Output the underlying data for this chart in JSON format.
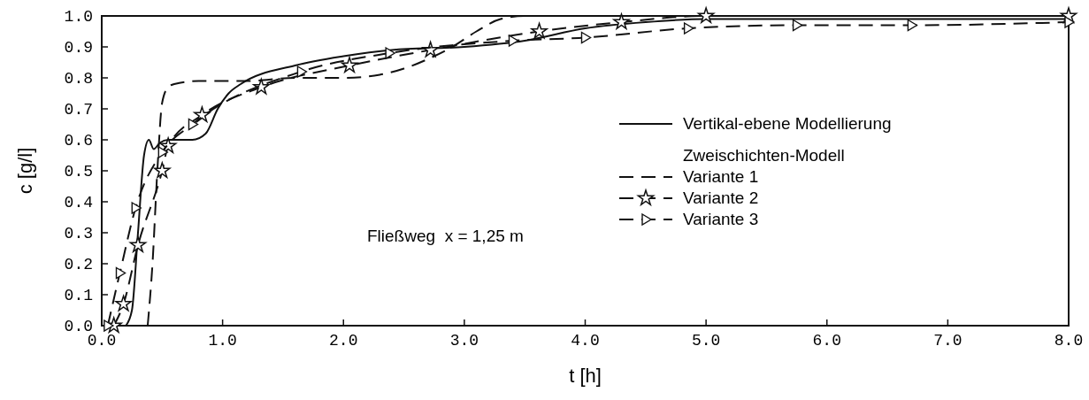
{
  "chart_data": {
    "type": "line",
    "xlabel": "t [h]",
    "ylabel": "c  [g/l]",
    "xlim": [
      0,
      8
    ],
    "ylim": [
      0,
      1
    ],
    "xticks": [
      {
        "value": 0,
        "label": "0.0"
      },
      {
        "value": 1,
        "label": "1.0"
      },
      {
        "value": 2,
        "label": "2.0"
      },
      {
        "value": 3,
        "label": "3.0"
      },
      {
        "value": 4,
        "label": "4.0"
      },
      {
        "value": 5,
        "label": "5.0"
      },
      {
        "value": 6,
        "label": "6.0"
      },
      {
        "value": 7,
        "label": "7.0"
      },
      {
        "value": 8,
        "label": "8.0"
      }
    ],
    "yticks": [
      {
        "value": 0,
        "label": "0.0"
      },
      0.1,
      0.2,
      0.3,
      0.4,
      0.5,
      0.6,
      0.7,
      0.8,
      0.9,
      {
        "value": 1,
        "label": "1.0"
      }
    ],
    "grid": false,
    "legend": "right",
    "legend_title": "Zweischichten-Modell",
    "annotations": [
      "Fließweg  x = 1,25 m"
    ],
    "series": [
      {
        "name": "Vertikal-ebene Modellierung",
        "color": "#111111",
        "line_style": "solid",
        "marker": "none",
        "x": [
          0.2,
          0.25,
          0.3,
          0.35,
          0.39,
          0.43,
          0.48,
          0.55,
          0.75,
          0.86,
          0.96,
          1.05,
          1.15,
          1.6,
          2.0,
          2.4,
          3.0,
          3.5,
          4.0,
          4.5,
          5.0,
          8.0
        ],
        "values": [
          0,
          0.05,
          0.3,
          0.55,
          0.6,
          0.57,
          0.59,
          0.6,
          0.6,
          0.62,
          0.7,
          0.75,
          0.78,
          0.84,
          0.87,
          0.89,
          0.9,
          0.92,
          0.96,
          0.98,
          0.99,
          0.99
        ]
      },
      {
        "name": "Variante 1",
        "color": "#111111",
        "line_style": "dashed",
        "marker": "none",
        "x": [
          0.38,
          0.42,
          0.46,
          0.5,
          0.55,
          0.6,
          0.8,
          1.2,
          1.6,
          2.0,
          2.3,
          2.5,
          2.75,
          2.9,
          3.1,
          3.3,
          3.5,
          8.0
        ],
        "values": [
          0,
          0.2,
          0.5,
          0.72,
          0.77,
          0.78,
          0.79,
          0.79,
          0.8,
          0.8,
          0.81,
          0.83,
          0.87,
          0.9,
          0.95,
          0.99,
          1.0,
          1.0
        ]
      },
      {
        "name": "Variante 2",
        "color": "#111111",
        "line_style": "dashed",
        "marker": "star",
        "x": [
          0.1,
          0.18,
          0.3,
          0.5,
          0.55,
          0.83,
          1.32,
          2.05,
          2.72,
          3.62,
          4.3,
          5.0,
          8.0
        ],
        "values": [
          0,
          0.07,
          0.26,
          0.5,
          0.58,
          0.68,
          0.77,
          0.84,
          0.89,
          0.95,
          0.98,
          1.0,
          1.0
        ]
      },
      {
        "name": "Variante 3",
        "color": "#111111",
        "line_style": "dashed",
        "marker": "triangle",
        "x": [
          0.05,
          0.15,
          0.28,
          0.5,
          0.75,
          1.65,
          2.38,
          3.4,
          4.0,
          4.85,
          5.75,
          6.7,
          8.0
        ],
        "values": [
          0,
          0.17,
          0.38,
          0.56,
          0.65,
          0.82,
          0.88,
          0.92,
          0.93,
          0.96,
          0.97,
          0.97,
          0.98
        ]
      }
    ]
  }
}
